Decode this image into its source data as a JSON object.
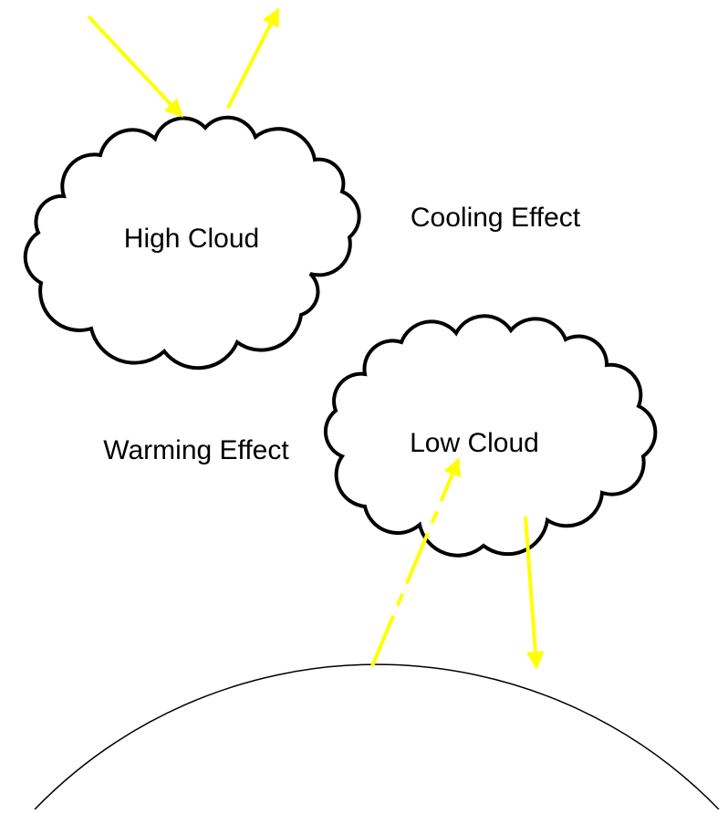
{
  "labels": {
    "high_cloud": "High Cloud",
    "low_cloud": "Low Cloud",
    "cooling": "Cooling Effect",
    "warming": "Warming Effect"
  }
}
